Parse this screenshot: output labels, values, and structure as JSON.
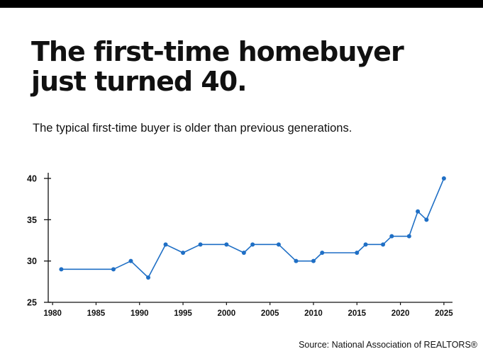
{
  "header": {
    "title_line1": "The first-time homebuyer",
    "title_line2": "just turned 40.",
    "subtitle": "The typical first-time buyer is older than previous generations."
  },
  "footer": {
    "source": "Source: National Association of REALTORS®"
  },
  "colors": {
    "series": "#1f6fc5",
    "axis": "#111111",
    "text": "#111111",
    "top_bar": "#000000"
  },
  "chart_data": {
    "type": "line",
    "title": "",
    "xlabel": "",
    "ylabel": "",
    "grid": false,
    "xlim": [
      1979.5,
      2025.5
    ],
    "ylim": [
      25,
      40
    ],
    "x_ticks": [
      1980,
      1985,
      1990,
      1995,
      2000,
      2005,
      2010,
      2015,
      2020,
      2025
    ],
    "y_ticks": [
      25,
      30,
      35,
      40
    ],
    "series": [
      {
        "x": [
          1981,
          1987,
          1989,
          1991,
          1993,
          1995,
          1997,
          2000,
          2002,
          2003,
          2006,
          2008,
          2010,
          2011,
          2015,
          2016,
          2018,
          2019,
          2021,
          2022,
          2023,
          2025
        ],
        "y": [
          29,
          29,
          30,
          28,
          32,
          31,
          32,
          32,
          31,
          32,
          32,
          30,
          30,
          31,
          31,
          32,
          32,
          33,
          33,
          36,
          35,
          40
        ]
      }
    ]
  }
}
